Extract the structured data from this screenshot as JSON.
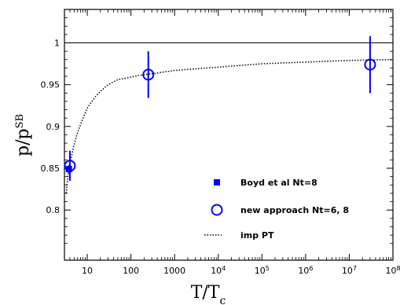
{
  "chart_data": {
    "type": "scatter",
    "x_scale": "log",
    "xlim": [
      3,
      100000000.0
    ],
    "ylim": [
      0.74,
      1.04
    ],
    "xlabel": {
      "main": "T/T",
      "sub": "c"
    },
    "ylabel": {
      "main": "p/p",
      "sup": "SB"
    },
    "x_ticks": [
      {
        "value": 10,
        "text": "10"
      },
      {
        "value": 100,
        "text": "100"
      },
      {
        "value": 1000,
        "text": "1000"
      },
      {
        "value": 10000,
        "base": "10",
        "exp": "4"
      },
      {
        "value": 100000,
        "base": "10",
        "exp": "5"
      },
      {
        "value": 1000000,
        "base": "10",
        "exp": "6"
      },
      {
        "value": 10000000,
        "base": "10",
        "exp": "7"
      },
      {
        "value": 100000000,
        "base": "10",
        "exp": "8"
      }
    ],
    "y_ticks": [
      {
        "value": 0.8,
        "text": "0.8"
      },
      {
        "value": 0.85,
        "text": "0.85"
      },
      {
        "value": 0.9,
        "text": "0.9"
      },
      {
        "value": 0.95,
        "text": "0.95"
      },
      {
        "value": 1,
        "text": "1"
      }
    ],
    "reference_line": {
      "y": 1
    },
    "series": [
      {
        "name": "Boyd et al Nt=8",
        "marker": "filled-square",
        "color": "#0000ff",
        "points": [
          {
            "x": 3.8,
            "y": 0.849,
            "yerr_low": 0.844,
            "yerr_high": 0.854
          }
        ]
      },
      {
        "name": "new approach Nt=6, 8",
        "marker": "open-circle",
        "color": "#0000ff",
        "points": [
          {
            "x": 4.0,
            "y": 0.853,
            "yerr_low": 0.835,
            "yerr_high": 0.871
          },
          {
            "x": 250,
            "y": 0.962,
            "yerr_low": 0.934,
            "yerr_high": 0.99
          },
          {
            "x": 30000000,
            "y": 0.974,
            "yerr_low": 0.94,
            "yerr_high": 1.008
          }
        ]
      },
      {
        "name": "imp PT",
        "marker": "dotted-line",
        "color": "#000000",
        "points": [
          {
            "x": 3.3,
            "y": 0.82
          },
          {
            "x": 3.6,
            "y": 0.84
          },
          {
            "x": 4,
            "y": 0.856
          },
          {
            "x": 5,
            "y": 0.878
          },
          {
            "x": 6,
            "y": 0.893
          },
          {
            "x": 8,
            "y": 0.91
          },
          {
            "x": 10,
            "y": 0.922
          },
          {
            "x": 15,
            "y": 0.935
          },
          {
            "x": 20,
            "y": 0.942
          },
          {
            "x": 30,
            "y": 0.95
          },
          {
            "x": 50,
            "y": 0.956
          },
          {
            "x": 80,
            "y": 0.958
          },
          {
            "x": 150,
            "y": 0.961
          },
          {
            "x": 300,
            "y": 0.963
          },
          {
            "x": 1000,
            "y": 0.967
          },
          {
            "x": 10000,
            "y": 0.971
          },
          {
            "x": 100000,
            "y": 0.975
          },
          {
            "x": 1000000,
            "y": 0.977
          },
          {
            "x": 10000000,
            "y": 0.979
          },
          {
            "x": 100000000,
            "y": 0.98
          }
        ]
      }
    ],
    "legend": {
      "placement": "bottom-right",
      "entries": [
        {
          "marker": "filled-square",
          "label": "Boyd et al Nt=8"
        },
        {
          "marker": "open-circle",
          "label": "new approach Nt=6, 8"
        },
        {
          "marker": "dotted-line",
          "label": "imp PT"
        }
      ]
    },
    "grid": false
  }
}
